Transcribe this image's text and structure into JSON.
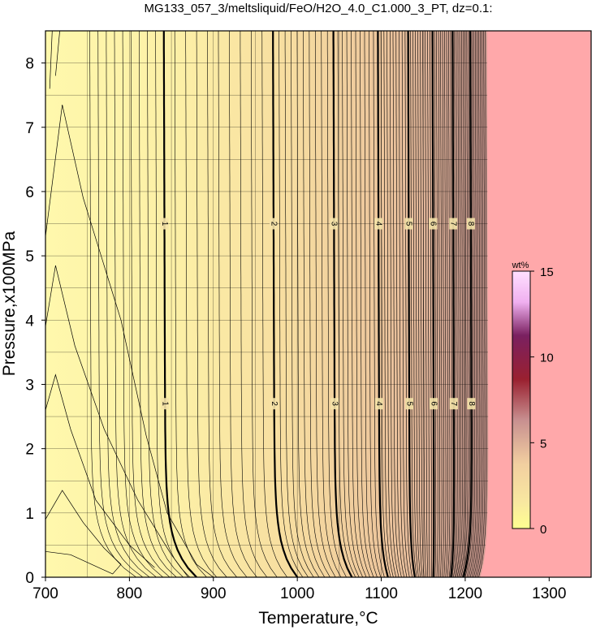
{
  "chart_data": {
    "type": "heatmap",
    "title": "MG133_057_3/meltsliquid/FeO/H2O_4.0_C1.000_3_PT, dz=0.1:",
    "xlabel": "Temperature,°C",
    "ylabel": "Pressure,x100MPa",
    "xlim": [
      700,
      1350
    ],
    "ylim": [
      0,
      8.5
    ],
    "x_ticks": [
      "700",
      "800",
      "900",
      "1000",
      "1100",
      "1200",
      "1300"
    ],
    "y_ticks": [
      "0",
      "1",
      "2",
      "3",
      "4",
      "5",
      "6",
      "7",
      "8"
    ],
    "grid": true,
    "colorbar": {
      "unit": "wt%",
      "range": [
        0,
        15
      ],
      "ticks": [
        "0",
        "5",
        "10",
        "15"
      ],
      "placement": "right-inside"
    },
    "contour_interval": 0.1,
    "labeled_contours": [
      {
        "label": "1",
        "temperature_at_high_P": 843,
        "temperature_at_low_P": 880
      },
      {
        "label": "2",
        "temperature_at_high_P": 973,
        "temperature_at_low_P": 1000
      },
      {
        "label": "3",
        "temperature_at_high_P": 1045,
        "temperature_at_low_P": 1065
      },
      {
        "label": "4",
        "temperature_at_high_P": 1098,
        "temperature_at_low_P": 1108
      },
      {
        "label": "5",
        "temperature_at_high_P": 1134,
        "temperature_at_low_P": 1140
      },
      {
        "label": "6",
        "temperature_at_high_P": 1163,
        "temperature_at_low_P": 1162
      },
      {
        "label": "7",
        "temperature_at_high_P": 1187,
        "temperature_at_low_P": 1183
      },
      {
        "label": "8",
        "temperature_at_high_P": 1208,
        "temperature_at_low_P": 1198
      }
    ],
    "liquidus_region_temperature_at_low_P": 1218,
    "liquidus_region_temperature_at_high_P": 1228,
    "colors": {
      "low": "#fff8a8",
      "mid": "#f3cf9f",
      "high": "#c89090",
      "out_of_range": "#ffa8aa"
    }
  }
}
